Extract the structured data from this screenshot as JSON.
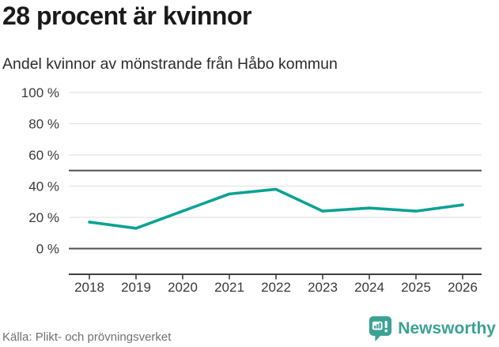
{
  "header": {
    "title": "28 procent är kvinnor",
    "subtitle": "Andel kvinnor av mönstrande från Håbo kommun"
  },
  "chart_data": {
    "type": "line",
    "title": "28 procent är kvinnor",
    "subtitle": "Andel kvinnor av mönstrande från Håbo kommun",
    "x": [
      "2018",
      "2019",
      "2020",
      "2021",
      "2022",
      "2023",
      "2024",
      "2025",
      "2026"
    ],
    "series": [
      {
        "name": "Andel kvinnor av mönstrande",
        "values": [
          17,
          13,
          24,
          35,
          38,
          24,
          26,
          24,
          28
        ]
      }
    ],
    "ylim": [
      0,
      100
    ],
    "yticks": [
      0,
      20,
      40,
      60,
      80,
      100
    ],
    "ytick_suffix": " %",
    "reference_line": 50,
    "grid": true,
    "legend": "none",
    "colors": {
      "line": "#0ba295",
      "gridline": "#e3e3e3",
      "reference_line": "#4f4f4f",
      "zero_line": "#4f4f4f",
      "axis": "#3f3f3f",
      "brand": "#3aa294"
    }
  },
  "footer": {
    "source": "Källa: Plikt- och prövningsverket",
    "brand": "Newsworthy",
    "logo_icon": "speech-bubble-bar-chart-badge"
  }
}
